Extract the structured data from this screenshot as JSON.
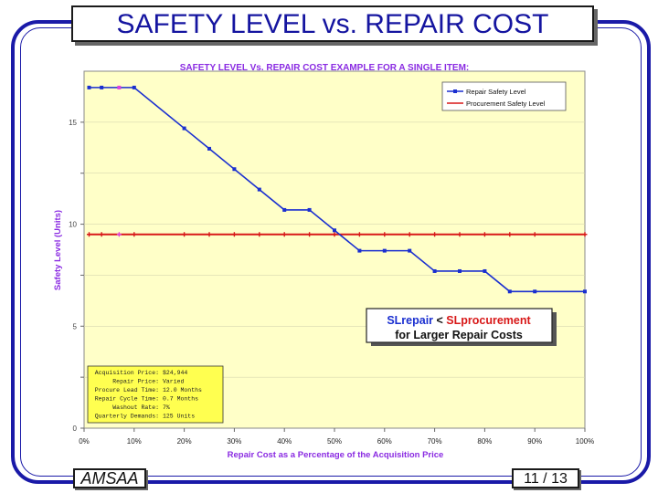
{
  "slide": {
    "title": "SAFETY LEVEL vs. REPAIR COST",
    "footer_left": "AMSAA",
    "page_number": "11 / 13"
  },
  "colors": {
    "frame": "#1a1aa8",
    "title_text": "#1515a0",
    "plot_bg": "#ffffc8",
    "repair_series": "#1a2fd0",
    "procurement_series": "#d81818",
    "heading": "#8a2be2"
  },
  "chart_data": {
    "type": "line",
    "title": "SAFETY LEVEL   Vs.   REPAIR COST    EXAMPLE FOR A SINGLE ITEM:",
    "xlabel": "Repair Cost as a Percentage of the Acquisition Price",
    "ylabel": "Safety Level   (Units)",
    "xlim": [
      0,
      100
    ],
    "ylim": [
      0,
      17.5
    ],
    "x_ticks": [
      0,
      10,
      20,
      30,
      40,
      50,
      60,
      70,
      80,
      90,
      100
    ],
    "x_tick_labels": [
      "0%",
      "10%",
      "20%",
      "30%",
      "40%",
      "50%",
      "60%",
      "70%",
      "80%",
      "90%",
      "100%"
    ],
    "y_ticks": [
      0,
      2.5,
      5,
      7.5,
      10,
      12.5,
      15
    ],
    "y_tick_labels": [
      "0",
      "",
      "5",
      "",
      "10",
      "",
      "15"
    ],
    "legend_position": "top-right",
    "series": [
      {
        "name": "Repair Safety Level",
        "x": [
          1,
          3.5,
          7,
          10,
          20,
          25,
          30,
          35,
          40,
          45,
          50,
          55,
          60,
          65,
          70,
          75,
          80,
          85,
          90,
          100
        ],
        "values": [
          16.7,
          16.7,
          16.7,
          16.7,
          14.7,
          13.7,
          12.7,
          11.7,
          10.7,
          10.7,
          9.7,
          8.7,
          8.7,
          8.7,
          7.7,
          7.7,
          7.7,
          6.7,
          6.7,
          6.7
        ]
      },
      {
        "name": "Procurement Safety Level",
        "x": [
          1,
          3.5,
          7,
          10,
          20,
          25,
          30,
          35,
          40,
          45,
          50,
          55,
          60,
          65,
          70,
          75,
          80,
          85,
          90,
          100
        ],
        "values": [
          9.5,
          9.5,
          9.5,
          9.5,
          9.5,
          9.5,
          9.5,
          9.5,
          9.5,
          9.5,
          9.5,
          9.5,
          9.5,
          9.5,
          9.5,
          9.5,
          9.5,
          9.5,
          9.5,
          9.5
        ]
      }
    ],
    "highlighted_point_x": 7,
    "annotation": {
      "line1_a": "SLrepair",
      "line1_b": " < ",
      "line1_c": "SLprocurement",
      "line2": "for Larger Repair Costs"
    },
    "parameters": [
      {
        "label": "Acquisition Price:",
        "value": "$24,944"
      },
      {
        "label": "Repair Price:",
        "value": "Varied"
      },
      {
        "label": "Procure Lead Time:",
        "value": "12.0 Months"
      },
      {
        "label": "Repair Cycle Time:",
        "value": "0.7 Months"
      },
      {
        "label": "Washout Rate:",
        "value": "7%"
      },
      {
        "label": "Quarterly Demands:",
        "value": "125 Units"
      }
    ]
  }
}
